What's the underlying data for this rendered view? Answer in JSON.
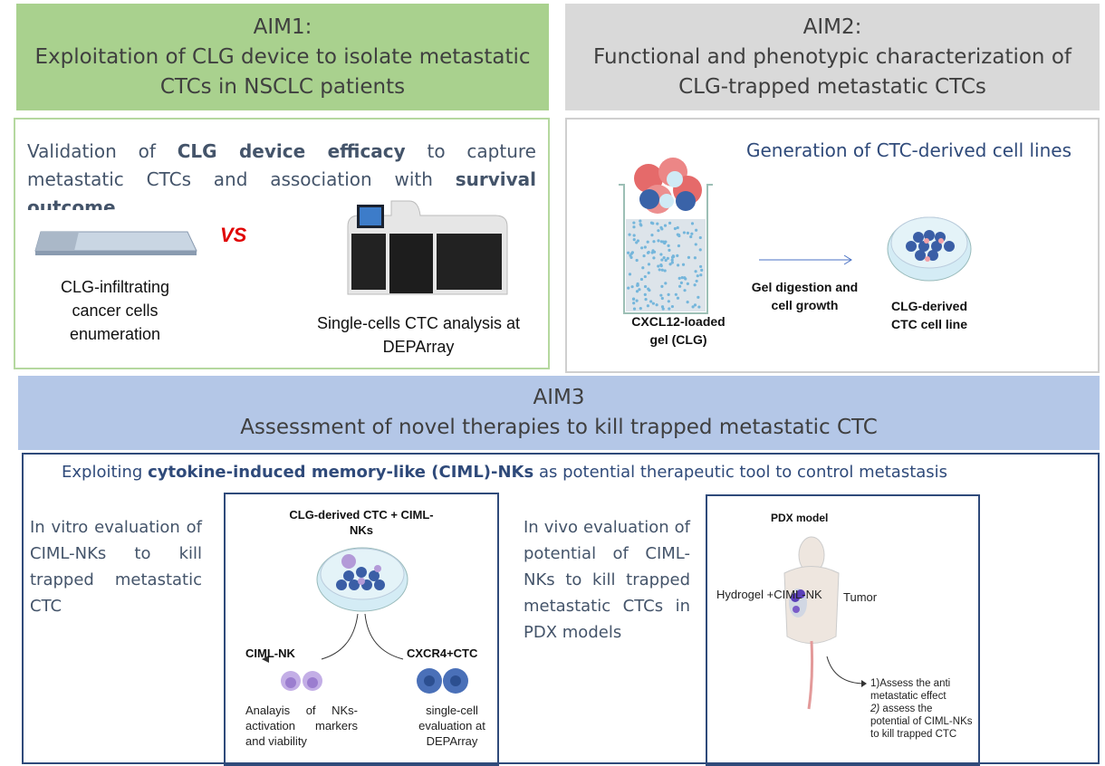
{
  "aim1": {
    "title": "AIM1:",
    "subtitle": "Exploitation of CLG device to isolate metastatic CTCs in NSCLC patients",
    "description": {
      "p1": "Validation of ",
      "b1": "CLG device efficacy",
      "p2": " to capture metastatic CTCs and  association with ",
      "b2": "survival outcome"
    },
    "left_caption": "CLG-infiltrating cancer cells enumeration",
    "vs_label": "VS",
    "right_caption": "Single-cells CTC analysis at DEPArray"
  },
  "aim2": {
    "title": "AIM2:",
    "subtitle": "Functional and phenotypic characterization of CLG-trapped metastatic CTCs",
    "description": "Generation of CTC-derived cell lines",
    "gel_label": "CXCL12-loaded gel (CLG)",
    "arrow_label": "Gel digestion and cell growth",
    "result_label": "CLG-derived CTC cell line"
  },
  "aim3": {
    "title": "AIM3",
    "subtitle": "Assessment of novel therapies to kill trapped metastatic CTC",
    "description": {
      "p1": "Exploiting ",
      "b1": "cytokine-induced memory-like (CIML)-NKs",
      "p2": " as potential therapeutic tool to control metastasis"
    },
    "in_vitro_text": "In vitro evaluation of CIML-NKs to kill trapped metastatic CTC",
    "in_vitro_figure": {
      "dish_label": "CLG-derived CTC + CIML-NKs",
      "left_label": "CIML-NK",
      "left_caption": "Analayis of NKs-activation markers and viability",
      "right_label": "CXCR4+CTC",
      "right_caption": "single-cell evaluation at DEPArray"
    },
    "in_vivo_text": "In vivo evaluation of potential of CIML-NKs to kill trapped metastatic CTCs in PDX models",
    "in_vivo_figure": {
      "title": "PDX model",
      "hydrogel_label": "Hydrogel +CIML-NK",
      "tumor_label": "Tumor",
      "outcome_1": "1)Assess the anti metastatic effect",
      "outcome_2_num": "2)",
      "outcome_2": " assess the potential of CIML-NKs to  kill trapped CTC"
    }
  },
  "colors": {
    "aim1": "#a9d18e",
    "aim2": "#d9d9d9",
    "aim3": "#b4c7e7",
    "border": "#2f4a7a",
    "vs": "#e00000"
  }
}
